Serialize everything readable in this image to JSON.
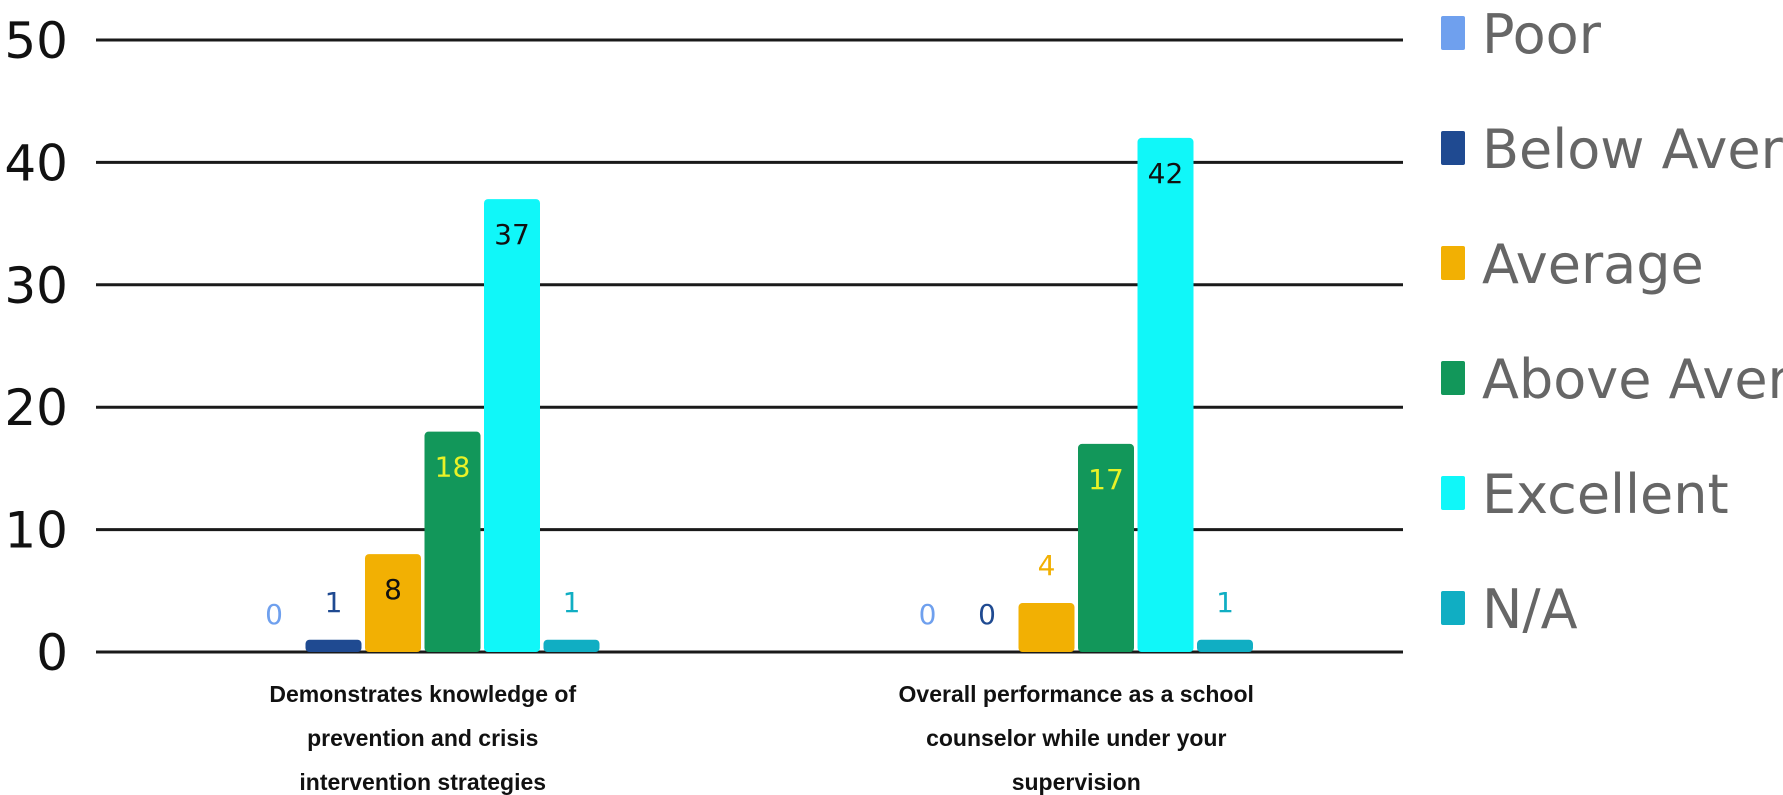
{
  "chart_data": {
    "type": "bar",
    "categories": [
      [
        "Demonstrates knowledge of",
        "prevention and crisis",
        "intervention strategies"
      ],
      [
        "Overall performance as a school",
        "counselor while under your",
        "supervision"
      ]
    ],
    "series": [
      {
        "name": "Poor",
        "color": "#6fa0ee",
        "label_color": "#6fa0ee",
        "values": [
          0,
          0
        ]
      },
      {
        "name": "Below Average",
        "color": "#1f4a91",
        "label_color": "#1f4a91",
        "values": [
          1,
          0
        ]
      },
      {
        "name": "Average",
        "color": "#f2b003",
        "label_color": [
          "#111111",
          "#f2b003"
        ],
        "values": [
          8,
          4
        ]
      },
      {
        "name": "Above Average",
        "color": "#12975a",
        "label_color": "#e8f227",
        "values": [
          18,
          17
        ]
      },
      {
        "name": "Excellent",
        "color": "#10f7f9",
        "label_color": "#111111",
        "values": [
          37,
          42
        ]
      },
      {
        "name": "N/A",
        "color": "#10aec3",
        "label_color": "#10aec3",
        "values": [
          1,
          1
        ]
      }
    ],
    "ylim": [
      0,
      50
    ],
    "yticks": [
      0,
      10,
      20,
      30,
      40,
      50
    ],
    "grid": true,
    "legend": "right",
    "title": "",
    "xlabel": "",
    "ylabel": ""
  }
}
